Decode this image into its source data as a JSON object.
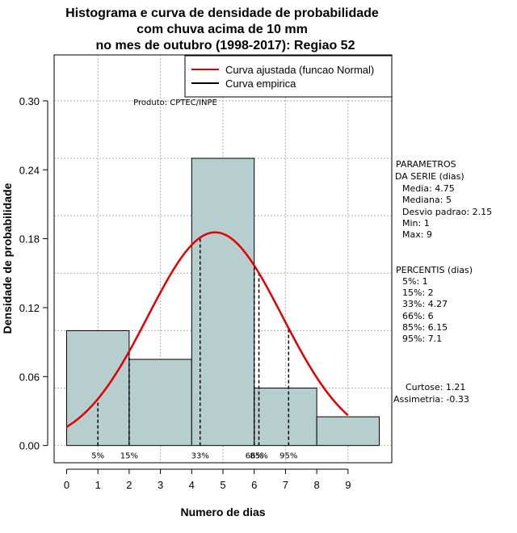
{
  "chart_data": {
    "type": "bar",
    "title": [
      "Histograma e curva de densidade de probabilidade",
      "com chuva acima de 10 mm",
      "no mes de outubro (1998-2017): Regiao 52"
    ],
    "xlabel": "Numero de dias",
    "ylabel": "Densidade de probabilidade",
    "xlim": [
      -0.4,
      10.4
    ],
    "ylim": [
      -0.015,
      0.34
    ],
    "x_ticks": [
      0,
      1,
      2,
      3,
      4,
      5,
      6,
      7,
      8,
      9
    ],
    "y_ticks": [
      0.0,
      0.06,
      0.12,
      0.18,
      0.24,
      0.3
    ],
    "y_tick_labels": [
      "0.00",
      "0.06",
      "0.12",
      "0.18",
      "0.24",
      "0.30"
    ],
    "grid_x": [
      1,
      3,
      5,
      7,
      9
    ],
    "grid_y": [
      0.0,
      0.05,
      0.1,
      0.15,
      0.2,
      0.25,
      0.3
    ],
    "bins": [
      {
        "from": 0,
        "to": 2,
        "density": 0.1
      },
      {
        "from": 2,
        "to": 4,
        "density": 0.075
      },
      {
        "from": 4,
        "to": 6,
        "density": 0.25
      },
      {
        "from": 6,
        "to": 8,
        "density": 0.05
      },
      {
        "from": 8,
        "to": 10,
        "density": 0.025
      }
    ],
    "normal_curve": {
      "mean": 4.75,
      "sd": 2.15,
      "x_from": 0,
      "x_to": 9
    },
    "percentile_lines": [
      {
        "label": "5%",
        "x": 1
      },
      {
        "label": "15%",
        "x": 2
      },
      {
        "label": "33%",
        "x": 4.27
      },
      {
        "label": "66%",
        "x": 6
      },
      {
        "label": "85%",
        "x": 6.15
      },
      {
        "label": "95%",
        "x": 7.1
      }
    ],
    "legend": {
      "position": "top-right",
      "entries": [
        {
          "label": "Curva ajustada (funcao Normal)",
          "color": "#e00000"
        },
        {
          "label": "Curva empirica",
          "color": "#000000"
        }
      ]
    },
    "product_note": "Produto: CPTEC/INPE",
    "side_panel": [
      "PARAMETROS",
      "DA SERIE (dias)",
      "Media: 4.75",
      "Mediana: 5",
      "Desvio padrao: 2.15",
      "Min: 1",
      "Max: 9",
      "PERCENTIS (dias)",
      "5%: 1",
      "15%: 2",
      "33%: 4.27",
      "66%: 6",
      "85%: 6.15",
      "95%: 7.1",
      "Curtose: 1.21",
      "Assimetria: -0.33"
    ],
    "colors": {
      "bar_fill": "#b7cece",
      "curve": "#e00000",
      "grid": "#b0b0b0"
    }
  }
}
